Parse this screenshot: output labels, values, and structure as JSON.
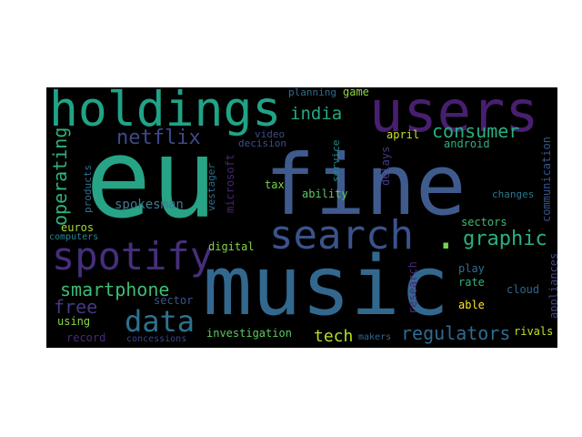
{
  "words": [
    {
      "text": "eu",
      "color": "#27a386"
    },
    {
      "text": "fine",
      "color": "#3f5b8e"
    },
    {
      "text": "music",
      "color": "#33688e"
    },
    {
      "text": "users",
      "color": "#481f70"
    },
    {
      "text": "holdings",
      "color": "#20a386"
    },
    {
      "text": "search",
      "color": "#3b528b"
    },
    {
      "text": "spotify",
      "color": "#472e7c"
    },
    {
      "text": "data",
      "color": "#2c728e"
    },
    {
      "text": "consumer",
      "color": "#29af7f"
    },
    {
      "text": "graphic",
      "color": "#2ab07f"
    },
    {
      "text": "india",
      "color": "#23a983"
    },
    {
      "text": "netflix",
      "color": "#3e4989"
    },
    {
      "text": "smartphone",
      "color": "#3dbc74"
    },
    {
      "text": "operating",
      "color": "#2eb37c"
    },
    {
      "text": "free",
      "color": "#44397e"
    },
    {
      "text": "regulators",
      "color": "#2f6b8e"
    },
    {
      "text": "tech",
      "color": "#b5de2b"
    },
    {
      "text": "spokesman",
      "color": "#3b7c8e"
    },
    {
      "text": "ability",
      "color": "#5ec962"
    },
    {
      "text": "tax",
      "color": "#7ad151"
    },
    {
      "text": "microsoft",
      "color": "#482475"
    },
    {
      "text": "vestager",
      "color": "#2c6f8e"
    },
    {
      "text": "decision",
      "color": "#3d4e8a"
    },
    {
      "text": "video",
      "color": "#3e4a89"
    },
    {
      "text": "service",
      "color": "#23888e"
    },
    {
      "text": "delays",
      "color": "#443983"
    },
    {
      "text": "planning",
      "color": "#2e6e8e"
    },
    {
      "text": "game",
      "color": "#90d743"
    },
    {
      "text": "april",
      "color": "#cae11f"
    },
    {
      "text": "android",
      "color": "#2db27d"
    },
    {
      "text": "communication",
      "color": "#3a548c"
    },
    {
      "text": "changes",
      "color": "#2a788e"
    },
    {
      "text": "euros",
      "color": "#a2da37"
    },
    {
      "text": "products",
      "color": "#2d708e"
    },
    {
      "text": "computers",
      "color": "#23888e"
    },
    {
      "text": "digital",
      "color": "#7fd34e"
    },
    {
      "text": "sectors",
      "color": "#3fbc73"
    },
    {
      "text": "play",
      "color": "#2e6e8e"
    },
    {
      "text": "rate",
      "color": "#2eb37c"
    },
    {
      "text": "research",
      "color": "#482878"
    },
    {
      "text": "cloud",
      "color": "#31668e"
    },
    {
      "text": "appliances",
      "color": "#3f4889"
    },
    {
      "text": "able",
      "color": "#fde725"
    },
    {
      "text": "sector",
      "color": "#3b528b"
    },
    {
      "text": "using",
      "color": "#8bd646"
    },
    {
      "text": "investigation",
      "color": "#5cc863"
    },
    {
      "text": "rivals",
      "color": "#c5e021"
    },
    {
      "text": "record",
      "color": "#472c7a"
    },
    {
      "text": "concessions",
      "color": "#404588"
    },
    {
      "text": "makers",
      "color": "#32658e"
    }
  ]
}
